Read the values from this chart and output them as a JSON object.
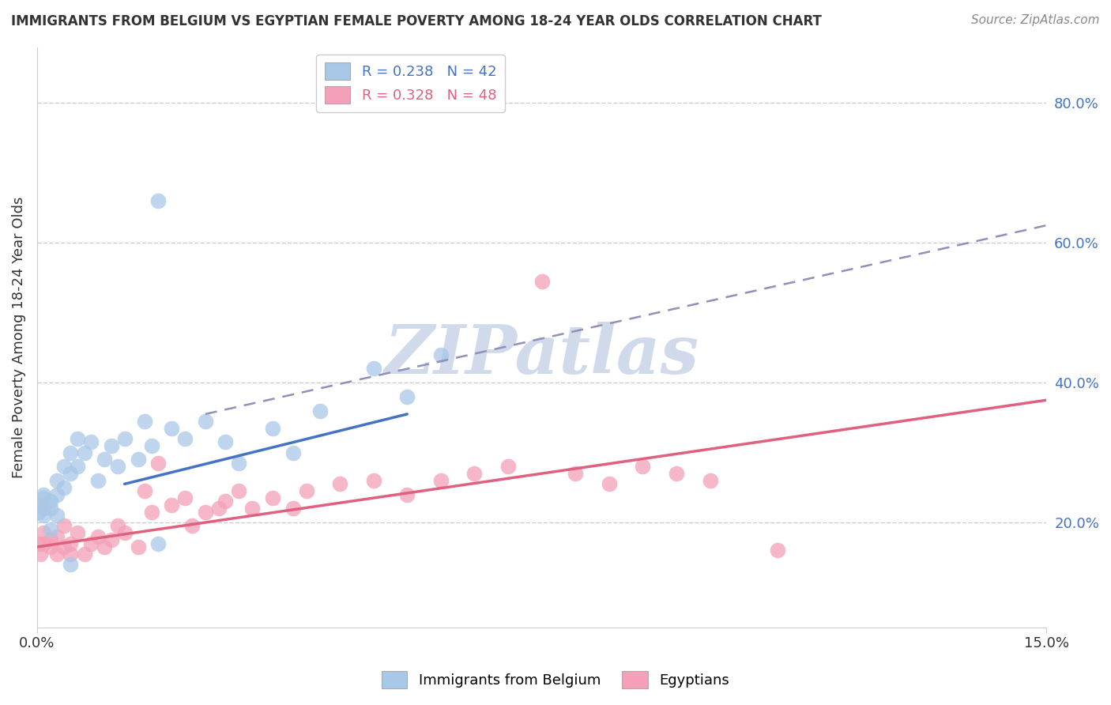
{
  "title": "IMMIGRANTS FROM BELGIUM VS EGYPTIAN FEMALE POVERTY AMONG 18-24 YEAR OLDS CORRELATION CHART",
  "source": "Source: ZipAtlas.com",
  "ylabel": "Female Poverty Among 18-24 Year Olds",
  "xlim": [
    0.0,
    0.15
  ],
  "ylim": [
    0.05,
    0.88
  ],
  "xticks": [
    0.0,
    0.15
  ],
  "xticklabels": [
    "0.0%",
    "15.0%"
  ],
  "yticks": [
    0.2,
    0.4,
    0.6,
    0.8
  ],
  "yticklabels": [
    "20.0%",
    "40.0%",
    "60.0%",
    "80.0%"
  ],
  "blue_R": 0.238,
  "blue_N": 42,
  "pink_R": 0.328,
  "pink_N": 48,
  "blue_scatter_color": "#a8c8e8",
  "pink_scatter_color": "#f4a0b8",
  "blue_line_color": "#4472c4",
  "pink_line_color": "#e06080",
  "dashed_line_color": "#9090b8",
  "watermark_text": "ZIPatlas",
  "watermark_color": "#c8d4e8",
  "legend_label_blue": "Immigrants from Belgium",
  "legend_label_pink": "Egyptians",
  "blue_line_x": [
    0.013,
    0.055
  ],
  "blue_line_y": [
    0.255,
    0.355
  ],
  "dashed_line_x": [
    0.025,
    0.15
  ],
  "dashed_line_y": [
    0.355,
    0.625
  ],
  "pink_line_x": [
    0.0,
    0.15
  ],
  "pink_line_y": [
    0.165,
    0.375
  ],
  "blue_pts_x": [
    0.0002,
    0.0005,
    0.001,
    0.001,
    0.001,
    0.001,
    0.002,
    0.002,
    0.002,
    0.003,
    0.003,
    0.003,
    0.004,
    0.004,
    0.005,
    0.005,
    0.006,
    0.006,
    0.007,
    0.008,
    0.009,
    0.01,
    0.011,
    0.012,
    0.013,
    0.015,
    0.016,
    0.017,
    0.018,
    0.02,
    0.022,
    0.025,
    0.028,
    0.03,
    0.035,
    0.038,
    0.042,
    0.05,
    0.055,
    0.06,
    0.018,
    0.005
  ],
  "blue_pts_y": [
    0.215,
    0.225,
    0.235,
    0.22,
    0.21,
    0.24,
    0.23,
    0.22,
    0.19,
    0.26,
    0.24,
    0.21,
    0.28,
    0.25,
    0.3,
    0.27,
    0.32,
    0.28,
    0.3,
    0.315,
    0.26,
    0.29,
    0.31,
    0.28,
    0.32,
    0.29,
    0.345,
    0.31,
    0.66,
    0.335,
    0.32,
    0.345,
    0.315,
    0.285,
    0.335,
    0.3,
    0.36,
    0.42,
    0.38,
    0.44,
    0.17,
    0.14
  ],
  "pink_pts_x": [
    0.0002,
    0.0005,
    0.001,
    0.001,
    0.002,
    0.002,
    0.003,
    0.003,
    0.004,
    0.004,
    0.005,
    0.005,
    0.006,
    0.007,
    0.008,
    0.009,
    0.01,
    0.011,
    0.012,
    0.013,
    0.015,
    0.016,
    0.017,
    0.018,
    0.02,
    0.022,
    0.023,
    0.025,
    0.027,
    0.028,
    0.03,
    0.032,
    0.035,
    0.038,
    0.04,
    0.045,
    0.05,
    0.055,
    0.06,
    0.065,
    0.07,
    0.075,
    0.08,
    0.085,
    0.09,
    0.095,
    0.1,
    0.11
  ],
  "pink_pts_y": [
    0.17,
    0.155,
    0.17,
    0.185,
    0.165,
    0.175,
    0.155,
    0.18,
    0.165,
    0.195,
    0.155,
    0.17,
    0.185,
    0.155,
    0.17,
    0.18,
    0.165,
    0.175,
    0.195,
    0.185,
    0.165,
    0.245,
    0.215,
    0.285,
    0.225,
    0.235,
    0.195,
    0.215,
    0.22,
    0.23,
    0.245,
    0.22,
    0.235,
    0.22,
    0.245,
    0.255,
    0.26,
    0.24,
    0.26,
    0.27,
    0.28,
    0.545,
    0.27,
    0.255,
    0.28,
    0.27,
    0.26,
    0.16
  ],
  "grid_color": "#cccccc",
  "grid_style": "--",
  "axis_color": "#cccccc",
  "text_color": "#333333",
  "tick_color": "#4472c4"
}
